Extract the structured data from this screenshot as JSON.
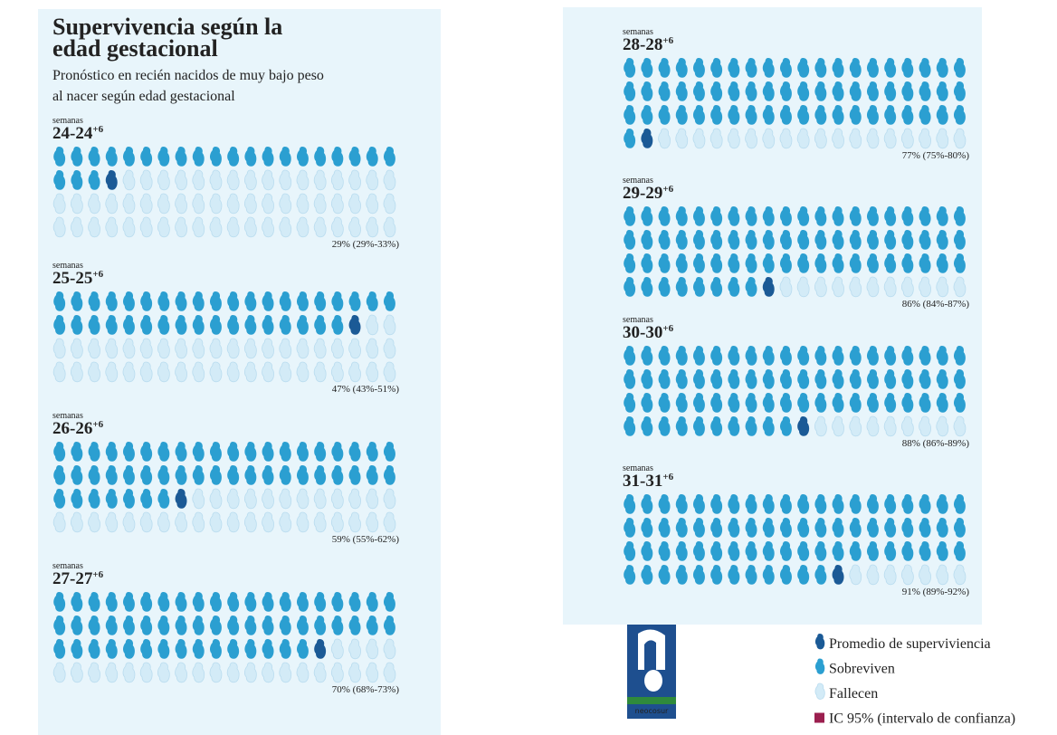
{
  "chart_data": {
    "type": "pictogram",
    "title": "Supervivencia según la edad gestacional",
    "subtitle": "Pronóstico en recién nacidos de muy bajo peso al nacer según edad gestacional",
    "unit_label": "semanas",
    "icons_per_panel": 80,
    "panels": [
      {
        "label": "24-24",
        "superscript": "+6",
        "value": 29,
        "ci": [
          29,
          33
        ],
        "value_label": "29% (29%-33%)"
      },
      {
        "label": "25-25",
        "superscript": "+6",
        "value": 47,
        "ci": [
          43,
          51
        ],
        "value_label": "47% (43%-51%)"
      },
      {
        "label": "26-26",
        "superscript": "+6",
        "value": 59,
        "ci": [
          55,
          62
        ],
        "value_label": "59% (55%-62%)"
      },
      {
        "label": "27-27",
        "superscript": "+6",
        "value": 70,
        "ci": [
          68,
          73
        ],
        "value_label": "70% (68%-73%)"
      },
      {
        "label": "28-28",
        "superscript": "+6",
        "value": 77,
        "ci": [
          75,
          80
        ],
        "value_label": "77% (75%-80%)"
      },
      {
        "label": "29-29",
        "superscript": "+6",
        "value": 86,
        "ci": [
          84,
          87
        ],
        "value_label": "86% (84%-87%)"
      },
      {
        "label": "30-30",
        "superscript": "+6",
        "value": 88,
        "ci": [
          86,
          89
        ],
        "value_label": "88% (86%-89%)"
      },
      {
        "label": "31-31",
        "superscript": "+6",
        "value": 91,
        "ci": [
          89,
          92
        ],
        "value_label": "91% (89%-92%)"
      }
    ],
    "legend": [
      {
        "name": "Promedio de superviviencia",
        "color": "#1b5a96"
      },
      {
        "name": "Sobreviven",
        "color": "#2b9fd1"
      },
      {
        "name": "Fallecen",
        "color": "#d3ebf7"
      },
      {
        "name": "IC 95% (intervalo de confianza)",
        "color": "#9b1f4f"
      }
    ],
    "logo_text": "neocosur"
  }
}
